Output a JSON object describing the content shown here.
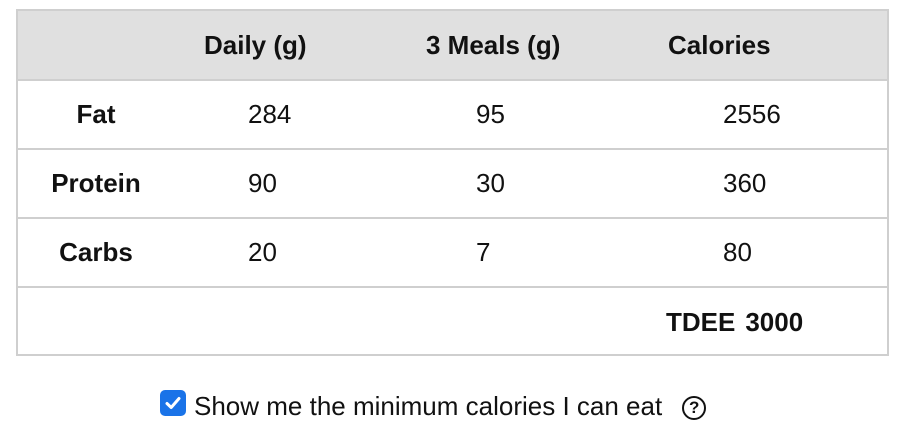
{
  "table": {
    "headers": [
      "",
      "Daily (g)",
      "3 Meals (g)",
      "Calories"
    ],
    "rows": [
      {
        "label": "Fat",
        "daily": "284",
        "meals": "95",
        "calories": "2556"
      },
      {
        "label": "Protein",
        "daily": "90",
        "meals": "30",
        "calories": "360"
      },
      {
        "label": "Carbs",
        "daily": "20",
        "meals": "7",
        "calories": "80"
      }
    ],
    "tdee_label": "TDEE",
    "tdee_value": "3000"
  },
  "option": {
    "checked": true,
    "label": "Show me the minimum calories I can eat",
    "help_glyph": "?"
  },
  "colors": {
    "header_bg": "#e0e0e0",
    "border": "#cfcfcf",
    "checkbox_accent": "#1a73e8"
  },
  "icons": {
    "checkbox": "checkmark-icon",
    "help": "question-circle-icon"
  }
}
